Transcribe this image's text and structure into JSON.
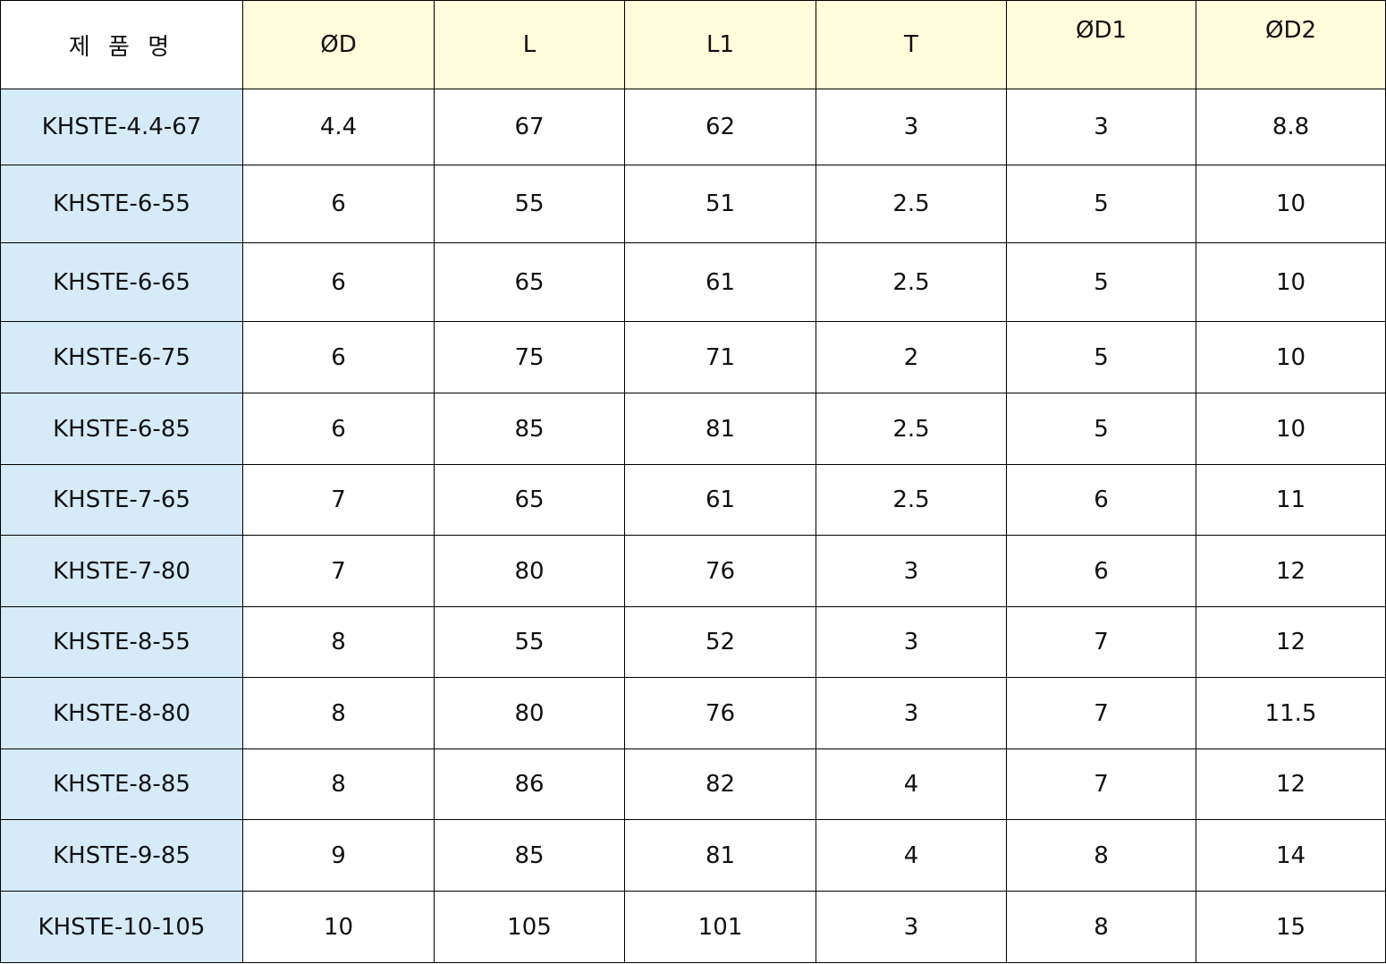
{
  "table": {
    "header": [
      "제 품 명",
      "ØD",
      "L",
      "L1",
      "T",
      "ØD1",
      "ØD2"
    ],
    "rows": [
      [
        "KHSTE-4.4-67",
        "4.4",
        "67",
        "62",
        "3",
        "3",
        "8.8"
      ],
      [
        "KHSTE-6-55",
        "6",
        "55",
        "51",
        "2.5",
        "5",
        "10"
      ],
      [
        "KHSTE-6-65",
        "6",
        "65",
        "61",
        "2.5",
        "5",
        "10"
      ],
      [
        "KHSTE-6-75",
        "6",
        "75",
        "71",
        "2",
        "5",
        "10"
      ],
      [
        "KHSTE-6-85",
        "6",
        "85",
        "81",
        "2.5",
        "5",
        "10"
      ],
      [
        "KHSTE-7-65",
        "7",
        "65",
        "61",
        "2.5",
        "6",
        "11"
      ],
      [
        "KHSTE-7-80",
        "7",
        "80",
        "76",
        "3",
        "6",
        "12"
      ],
      [
        "KHSTE-8-55",
        "8",
        "55",
        "52",
        "3",
        "7",
        "12"
      ],
      [
        "KHSTE-8-80",
        "8",
        "80",
        "76",
        "3",
        "7",
        "11.5"
      ],
      [
        "KHSTE-8-85",
        "8",
        "86",
        "82",
        "4",
        "7",
        "12"
      ],
      [
        "KHSTE-9-85",
        "9",
        "85",
        "81",
        "4",
        "8",
        "14"
      ],
      [
        "KHSTE-10-105",
        "10",
        "105",
        "101",
        "3",
        "8",
        "15"
      ]
    ]
  }
}
